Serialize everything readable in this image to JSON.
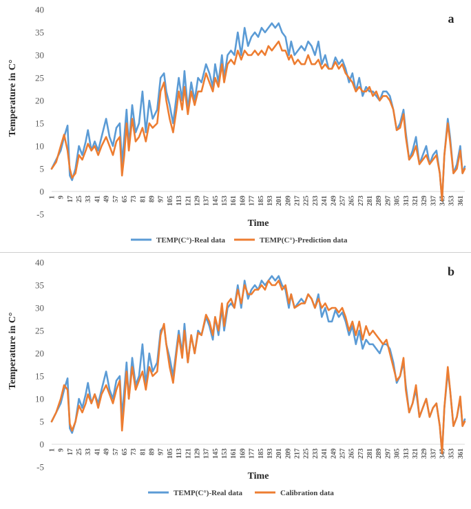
{
  "chart_data": [
    {
      "type": "line",
      "panel_label": "a",
      "xlabel": "Time",
      "ylabel": "Temperature in C°",
      "ylim": [
        -5,
        40
      ],
      "yticks": [
        -5,
        0,
        5,
        10,
        15,
        20,
        25,
        30,
        35,
        40
      ],
      "xticks": [
        "1",
        "9",
        "17",
        "25",
        "33",
        "41",
        "49",
        "57",
        "65",
        "73",
        "81",
        "89",
        "97",
        "105",
        "113",
        "121",
        "129",
        "137",
        "145",
        "153",
        "161",
        "169",
        "177",
        "185",
        "193",
        "201",
        "209",
        "217",
        "225",
        "233",
        "241",
        "249",
        "257",
        "265",
        "273",
        "281",
        "289",
        "297",
        "305",
        "313",
        "321",
        "329",
        "337",
        "345",
        "353",
        "361"
      ],
      "x_range": [
        1,
        365
      ],
      "legend": [
        "TEMP(C°)-Real data",
        "TEMP(C°)-Prediction data"
      ],
      "series": [
        {
          "name": "TEMP(C°)-Real data",
          "color": "#5B9BD5",
          "x": [
            1,
            5,
            9,
            12,
            15,
            17,
            19,
            22,
            25,
            28,
            31,
            33,
            36,
            39,
            42,
            45,
            49,
            52,
            55,
            58,
            61,
            63,
            65,
            67,
            69,
            72,
            75,
            78,
            81,
            84,
            87,
            90,
            94,
            97,
            100,
            102,
            105,
            108,
            111,
            113,
            116,
            118,
            121,
            124,
            127,
            130,
            133,
            137,
            140,
            143,
            145,
            148,
            151,
            153,
            156,
            159,
            162,
            165,
            168,
            171,
            174,
            177,
            180,
            183,
            186,
            189,
            192,
            195,
            198,
            201,
            204,
            207,
            210,
            212,
            215,
            218,
            221,
            224,
            227,
            230,
            233,
            236,
            239,
            242,
            245,
            248,
            251,
            254,
            257,
            260,
            263,
            266,
            269,
            272,
            275,
            278,
            281,
            284,
            287,
            290,
            293,
            296,
            299,
            302,
            305,
            308,
            311,
            313,
            316,
            319,
            322,
            325,
            328,
            331,
            334,
            337,
            340,
            343,
            345,
            347,
            350,
            352,
            355,
            358,
            361,
            363,
            365
          ],
          "values": [
            5,
            7,
            9,
            12,
            14.5,
            3.5,
            2.5,
            5,
            10,
            8,
            11,
            13.5,
            9,
            11,
            9,
            12,
            16,
            12,
            10,
            14,
            15,
            6,
            12,
            18,
            10,
            19,
            13,
            15,
            22,
            13,
            20,
            16,
            18,
            25,
            26,
            22,
            19,
            15,
            21,
            25,
            20,
            26.5,
            18,
            24,
            20,
            25,
            24,
            28,
            26,
            23,
            28,
            24,
            30,
            25,
            30,
            31,
            30,
            35,
            30,
            36,
            32,
            34,
            35,
            34,
            36,
            35,
            36,
            37,
            36,
            37,
            35,
            34,
            30,
            33,
            30,
            31,
            32,
            31,
            33,
            32,
            30,
            33,
            28,
            30,
            27,
            27,
            29.5,
            28,
            29,
            27,
            24,
            26,
            22,
            25,
            21,
            23,
            22,
            22,
            21,
            20,
            22,
            22,
            21,
            18,
            13.5,
            15,
            18,
            13,
            7,
            9,
            12,
            6,
            8,
            10,
            6,
            8,
            9,
            4,
            -2,
            8,
            16,
            12,
            4,
            6,
            10,
            4,
            5.5
          ]
        },
        {
          "name": "TEMP(C°)-Prediction data",
          "color": "#ED7D31",
          "x": [
            1,
            5,
            9,
            12,
            15,
            17,
            19,
            22,
            25,
            28,
            31,
            33,
            36,
            39,
            42,
            45,
            49,
            52,
            55,
            58,
            61,
            63,
            65,
            67,
            69,
            72,
            75,
            78,
            81,
            84,
            87,
            90,
            94,
            97,
            100,
            102,
            105,
            108,
            111,
            113,
            116,
            118,
            121,
            124,
            127,
            130,
            133,
            137,
            140,
            143,
            145,
            148,
            151,
            153,
            156,
            159,
            162,
            165,
            168,
            171,
            174,
            177,
            180,
            183,
            186,
            189,
            192,
            195,
            198,
            201,
            204,
            207,
            210,
            212,
            215,
            218,
            221,
            224,
            227,
            230,
            233,
            236,
            239,
            242,
            245,
            248,
            251,
            254,
            257,
            260,
            263,
            266,
            269,
            272,
            275,
            278,
            281,
            284,
            287,
            290,
            293,
            296,
            299,
            302,
            305,
            308,
            311,
            313,
            316,
            319,
            322,
            325,
            328,
            331,
            334,
            337,
            340,
            343,
            345,
            347,
            350,
            352,
            355,
            358,
            361,
            363,
            365
          ],
          "values": [
            5,
            6.5,
            10,
            12.5,
            9,
            5,
            3,
            4,
            8,
            7,
            9,
            10.5,
            9,
            10,
            8,
            10,
            12,
            10,
            8,
            11,
            12,
            3.5,
            8,
            15,
            9,
            16,
            11,
            12,
            14,
            11,
            15,
            14,
            15,
            22,
            24,
            20,
            16,
            13,
            18,
            22,
            18,
            23,
            17,
            22,
            19,
            22,
            22,
            26,
            24,
            22,
            25,
            23,
            28,
            24,
            28,
            29,
            28,
            31,
            29,
            31,
            30,
            30,
            31,
            30,
            31,
            30,
            32,
            31,
            32,
            33,
            31,
            31,
            29,
            30,
            28,
            29,
            28,
            28,
            30,
            28,
            28,
            29,
            27,
            28,
            27,
            27,
            28.5,
            27,
            28,
            26,
            25,
            24,
            22,
            23,
            22,
            22,
            23,
            21,
            22,
            20,
            21,
            21,
            20,
            18,
            13.5,
            14,
            17,
            12,
            7,
            8,
            10,
            6,
            7,
            8,
            6,
            7,
            8,
            4,
            -2,
            8,
            15,
            11,
            4,
            5,
            9,
            4,
            5
          ]
        }
      ]
    },
    {
      "type": "line",
      "panel_label": "b",
      "xlabel": "Time",
      "ylabel": "Temperature in C°",
      "ylim": [
        -5,
        40
      ],
      "yticks": [
        -5,
        0,
        5,
        10,
        15,
        20,
        25,
        30,
        35,
        40
      ],
      "xticks": [
        "1",
        "9",
        "17",
        "25",
        "33",
        "41",
        "49",
        "57",
        "65",
        "73",
        "81",
        "89",
        "97",
        "105",
        "113",
        "121",
        "129",
        "137",
        "145",
        "153",
        "161",
        "169",
        "177",
        "185",
        "193",
        "201",
        "209",
        "217",
        "225",
        "233",
        "241",
        "249",
        "257",
        "265",
        "273",
        "281",
        "289",
        "297",
        "305",
        "313",
        "321",
        "329",
        "337",
        "345",
        "353",
        "361"
      ],
      "x_range": [
        1,
        365
      ],
      "legend": [
        "TEMP(C°)-Real data",
        "Calibration data"
      ],
      "series": [
        {
          "name": "TEMP(C°)-Real data",
          "color": "#5B9BD5",
          "x": [
            1,
            5,
            9,
            12,
            15,
            17,
            19,
            22,
            25,
            28,
            31,
            33,
            36,
            39,
            42,
            45,
            49,
            52,
            55,
            58,
            61,
            63,
            65,
            67,
            69,
            72,
            75,
            78,
            81,
            84,
            87,
            90,
            94,
            97,
            100,
            102,
            105,
            108,
            111,
            113,
            116,
            118,
            121,
            124,
            127,
            130,
            133,
            137,
            140,
            143,
            145,
            148,
            151,
            153,
            156,
            159,
            162,
            165,
            168,
            171,
            174,
            177,
            180,
            183,
            186,
            189,
            192,
            195,
            198,
            201,
            204,
            207,
            210,
            212,
            215,
            218,
            221,
            224,
            227,
            230,
            233,
            236,
            239,
            242,
            245,
            248,
            251,
            254,
            257,
            260,
            263,
            266,
            269,
            272,
            275,
            278,
            281,
            284,
            287,
            290,
            293,
            296,
            299,
            302,
            305,
            308,
            311,
            313,
            316,
            319,
            322,
            325,
            328,
            331,
            334,
            337,
            340,
            343,
            345,
            347,
            350,
            352,
            355,
            358,
            361,
            363,
            365
          ],
          "values": [
            5,
            7,
            9,
            12,
            14.5,
            3.5,
            2.5,
            5,
            10,
            8,
            11,
            13.5,
            9,
            11,
            9,
            12,
            16,
            12,
            10,
            14,
            15,
            6,
            12,
            18,
            10,
            19,
            13,
            15,
            22,
            13,
            20,
            16,
            18,
            25,
            26,
            22,
            19,
            15,
            21,
            25,
            20,
            26.5,
            18,
            24,
            20,
            25,
            24,
            28,
            26,
            23,
            28,
            24,
            30,
            25,
            30,
            31,
            30,
            35,
            30,
            36,
            32,
            34,
            35,
            34,
            36,
            35,
            36,
            37,
            36,
            37,
            35,
            34,
            30,
            33,
            30,
            31,
            32,
            31,
            33,
            32,
            30,
            33,
            28,
            30,
            27,
            27,
            29.5,
            28,
            29,
            27,
            24,
            26,
            22,
            25,
            21,
            23,
            22,
            22,
            21,
            20,
            22,
            22,
            21,
            18,
            13.5,
            15,
            18,
            13,
            7,
            9,
            12,
            6,
            8,
            10,
            6,
            8,
            9,
            4,
            -2,
            8,
            16,
            12,
            4,
            6,
            10,
            4,
            5.5
          ]
        },
        {
          "name": "Calibration data",
          "color": "#ED7D31",
          "x": [
            1,
            5,
            9,
            12,
            15,
            17,
            19,
            22,
            25,
            28,
            31,
            33,
            36,
            39,
            42,
            45,
            49,
            52,
            55,
            58,
            61,
            63,
            65,
            67,
            69,
            72,
            75,
            78,
            81,
            84,
            87,
            90,
            94,
            97,
            100,
            102,
            105,
            108,
            111,
            113,
            116,
            118,
            121,
            124,
            127,
            130,
            133,
            137,
            140,
            143,
            145,
            148,
            151,
            153,
            156,
            159,
            162,
            165,
            168,
            171,
            174,
            177,
            180,
            183,
            186,
            189,
            192,
            195,
            198,
            201,
            204,
            207,
            210,
            212,
            215,
            218,
            221,
            224,
            227,
            230,
            233,
            236,
            239,
            242,
            245,
            248,
            251,
            254,
            257,
            260,
            263,
            266,
            269,
            272,
            275,
            278,
            281,
            284,
            287,
            290,
            293,
            296,
            299,
            302,
            305,
            308,
            311,
            313,
            316,
            319,
            322,
            325,
            328,
            331,
            334,
            337,
            340,
            343,
            345,
            347,
            350,
            352,
            355,
            358,
            361,
            363,
            365
          ],
          "values": [
            5,
            7,
            10,
            13,
            12,
            4.5,
            3,
            5,
            8.5,
            7,
            9,
            11,
            9,
            11,
            8,
            11,
            13,
            11,
            9,
            12,
            14,
            3,
            9,
            16,
            10,
            17,
            12,
            14,
            16,
            12,
            17,
            15,
            16,
            24,
            26.5,
            22,
            17,
            13.5,
            20,
            24,
            19,
            25,
            18,
            24,
            20,
            24.5,
            24,
            28.5,
            27,
            24,
            28,
            25,
            31,
            26,
            31,
            32,
            30,
            34,
            31,
            35,
            33,
            33,
            34,
            34,
            35,
            34,
            36,
            35,
            35,
            36,
            34,
            35,
            31,
            33,
            30,
            30.5,
            31,
            31,
            33,
            32,
            30,
            32,
            30,
            31,
            29.5,
            30,
            30,
            29,
            30,
            28,
            25,
            27,
            24,
            27,
            23,
            26,
            24,
            25,
            24,
            23,
            22,
            23,
            20,
            17,
            14,
            15,
            19,
            12,
            7,
            9,
            13,
            6,
            8,
            10,
            6,
            8,
            9,
            4,
            -2,
            8,
            17,
            12,
            4,
            6,
            10.5,
            4,
            5
          ]
        }
      ]
    }
  ]
}
